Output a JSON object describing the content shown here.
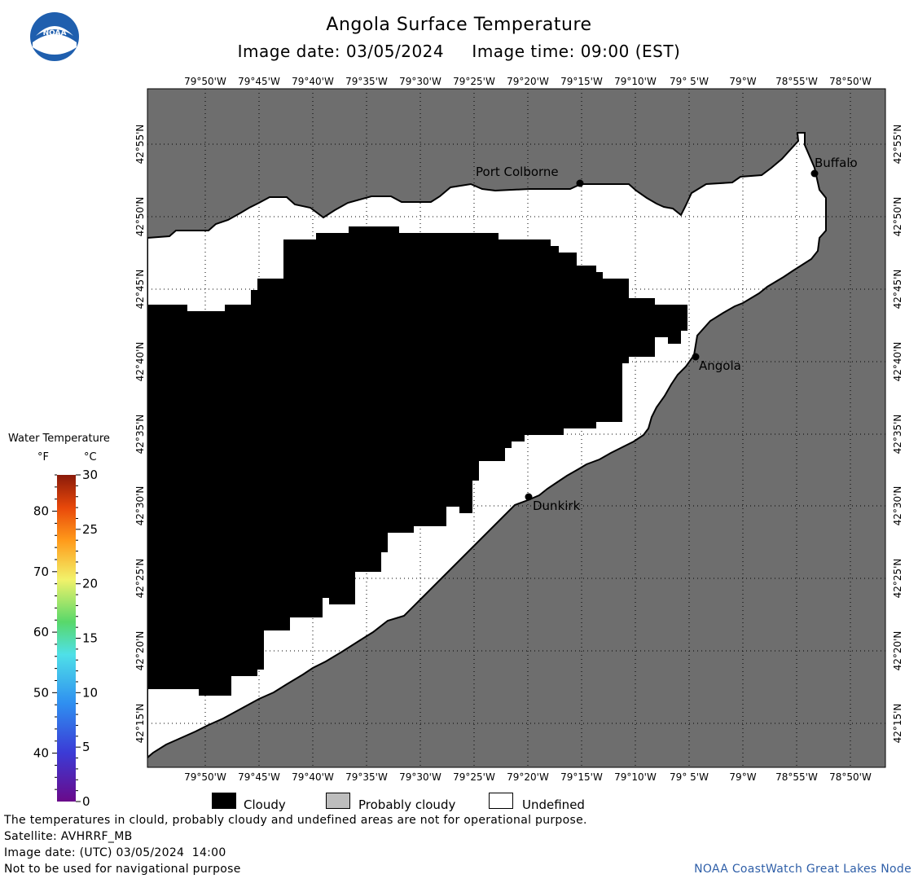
{
  "header": {
    "title": "Angola Surface Temperature",
    "date_label": "Image date:",
    "date": "03/05/2024",
    "time_label": "Image time:",
    "time": "09:00 (EST)",
    "logo_text": "NOAA"
  },
  "map": {
    "lon_labels": [
      "79°50'W",
      "79°45'W",
      "79°40'W",
      "79°35'W",
      "79°30'W",
      "79°25'W",
      "79°20'W",
      "79°15'W",
      "79°10'W",
      "79° 5'W",
      "79°W",
      "78°55'W",
      "78°50'W"
    ],
    "lat_labels": [
      "42°55'N",
      "42°50'N",
      "42°45'N",
      "42°40'N",
      "42°35'N",
      "42°30'N",
      "42°25'N",
      "42°20'N",
      "42°15'N"
    ],
    "cities": [
      {
        "name": "Port Colborne"
      },
      {
        "name": "Buffalo"
      },
      {
        "name": "Angola"
      },
      {
        "name": "Dunkirk"
      }
    ],
    "colors": {
      "land": "#6e6e6e",
      "cloudy": "#000000",
      "undefined": "#ffffff",
      "probably_cloudy": "#bdbdbd"
    }
  },
  "legend": {
    "title": "Water Temperature",
    "unit_f": "°F",
    "unit_c": "°C",
    "f_ticks": [
      "80",
      "70",
      "60",
      "50",
      "40"
    ],
    "c_ticks": [
      "30",
      "25",
      "20",
      "15",
      "10",
      "5",
      "0"
    ]
  },
  "key": [
    {
      "label": "Cloudy",
      "color": "#000000"
    },
    {
      "label": "Probably cloudy",
      "color": "#bdbdbd"
    },
    {
      "label": "Undefined",
      "color": "#ffffff"
    }
  ],
  "footer": {
    "disclaimer": "The temperatures in clould, probably cloudy and undefined areas are not for operational purpose.",
    "satellite": "Satellite: AVHRRF_MB",
    "utc_date": "Image date: (UTC) 03/05/2024  14:00",
    "nav_warning": "Not to be used for navigational purpose",
    "credit": "NOAA CoastWatch Great Lakes Node"
  }
}
